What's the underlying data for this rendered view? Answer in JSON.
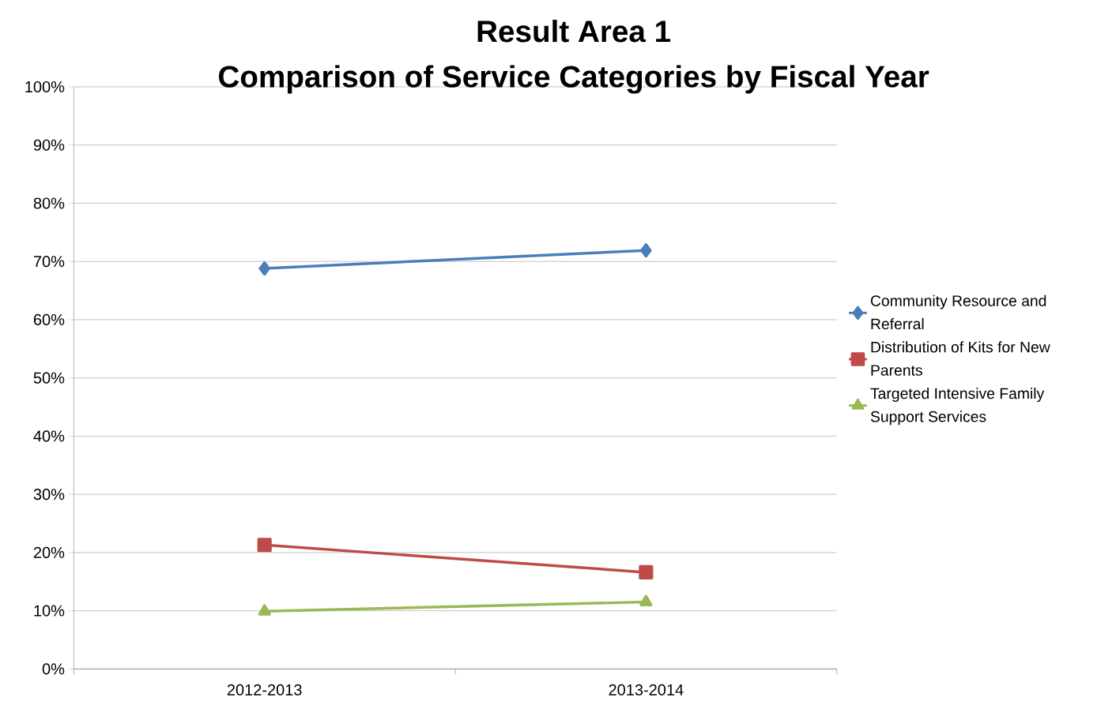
{
  "chart_data": {
    "type": "line",
    "title": "Result Area 1",
    "subtitle": "Comparison of Service Categories by Fiscal Year",
    "categories": [
      "2012-2013",
      "2013-2014"
    ],
    "series": [
      {
        "name": "Community Resource and Referral",
        "color": "#4a7ebb",
        "values": [
          68.8,
          71.9
        ],
        "marker": "diamond"
      },
      {
        "name": "Distribution of Kits for New Parents",
        "color": "#be4b48",
        "values": [
          21.3,
          16.6
        ],
        "marker": "square"
      },
      {
        "name": "Targeted Intensive Family Support Services",
        "color": "#98b954",
        "values": [
          9.9,
          11.5
        ],
        "marker": "triangle"
      }
    ],
    "ylim": [
      0,
      100
    ],
    "yticks": [
      {
        "value": 0,
        "label": "0%"
      },
      {
        "value": 10,
        "label": "10%"
      },
      {
        "value": 20,
        "label": "20%"
      },
      {
        "value": 30,
        "label": "30%"
      },
      {
        "value": 40,
        "label": "40%"
      },
      {
        "value": 50,
        "label": "50%"
      },
      {
        "value": 60,
        "label": "60%"
      },
      {
        "value": 70,
        "label": "70%"
      },
      {
        "value": 80,
        "label": "80%"
      },
      {
        "value": 90,
        "label": "90%"
      },
      {
        "value": 100,
        "label": "100%"
      }
    ],
    "grid": "y",
    "legend": "right",
    "line_style": "solid"
  }
}
